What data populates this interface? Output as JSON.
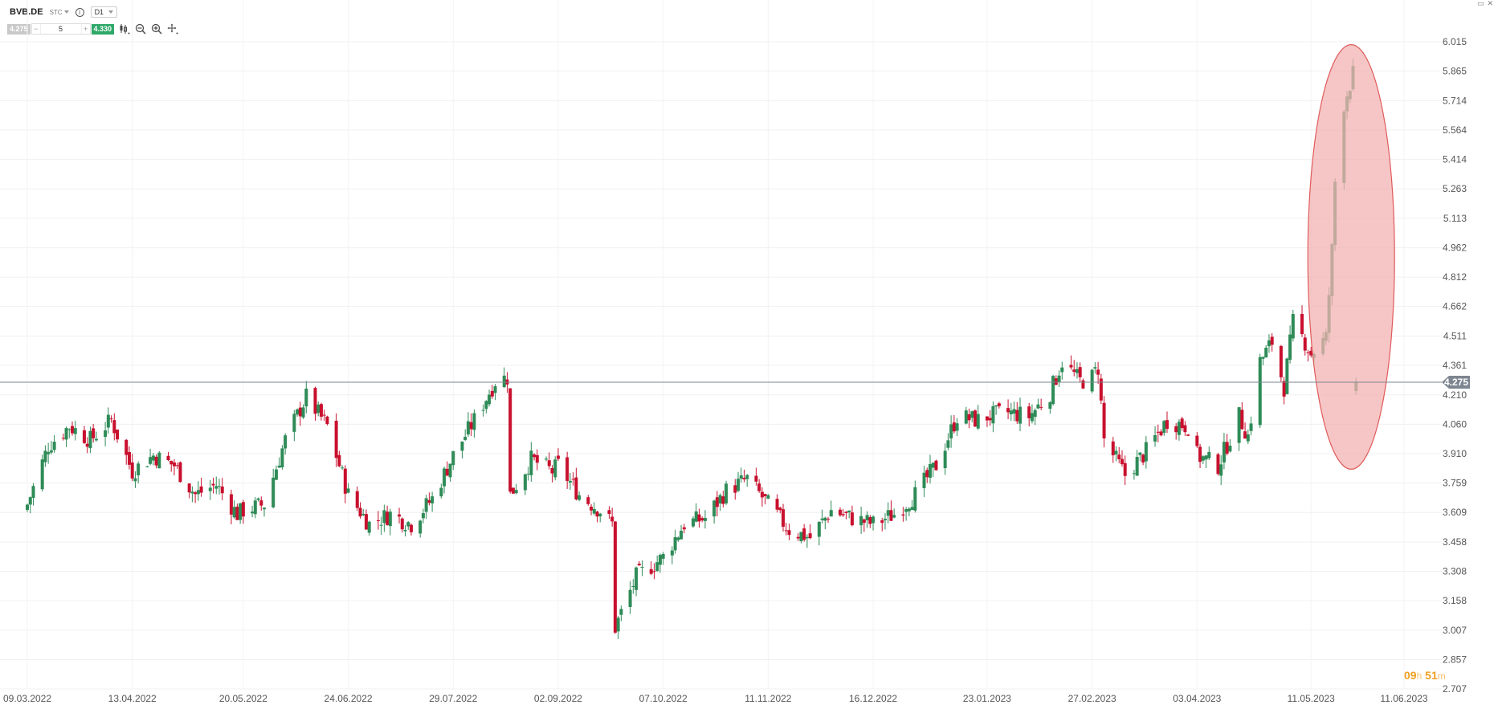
{
  "header": {
    "symbol": "BVB.DE",
    "instrument_type": "STC",
    "timeframe": "D1",
    "sell_price": "4.275",
    "quantity": "5",
    "buy_price": "4.330",
    "minus": "−",
    "plus": "+",
    "icons": [
      "info-icon",
      "candlestick-icon",
      "zoom-out-icon",
      "zoom-in-icon",
      "crosshair-icon"
    ]
  },
  "window_controls": [
    "minimize-icon",
    "close-icon"
  ],
  "timer": {
    "hours": "09",
    "h_unit": "h",
    "minutes": "51",
    "m_unit": "m"
  },
  "colors": {
    "up": "#2e8b57",
    "down": "#c8102e",
    "ellipse_fill": "#f3b3b3",
    "ellipse_stroke": "#e05a5a",
    "current_line": "#7d8590"
  },
  "chart_data": {
    "type": "candlestick",
    "ylim": [
      2.707,
      6.015
    ],
    "y_ticks": [
      "6.015",
      "5.865",
      "5.714",
      "5.564",
      "5.414",
      "5.263",
      "5.113",
      "4.962",
      "4.812",
      "4.662",
      "4.511",
      "4.361",
      "4.210",
      "4.060",
      "3.910",
      "3.759",
      "3.609",
      "3.458",
      "3.308",
      "3.158",
      "3.007",
      "2.857",
      "2.707"
    ],
    "x_ticks": [
      "09.03.2022",
      "13.04.2022",
      "20.05.2022",
      "24.06.2022",
      "29.07.2022",
      "02.09.2022",
      "07.10.2022",
      "11.11.2022",
      "16.12.2022",
      "23.01.2023",
      "27.02.2023",
      "03.04.2023",
      "11.05.2023",
      "11.06.2023"
    ],
    "current_price": "4.275",
    "highlight": "ellipse around May 2023 price spike",
    "close_path": [
      [
        "09.03.2022",
        3.65
      ],
      [
        "16.03.2022",
        3.95
      ],
      [
        "23.03.2022",
        4.05
      ],
      [
        "30.03.2022",
        3.98
      ],
      [
        "06.04.2022",
        4.08
      ],
      [
        "13.04.2022",
        3.82
      ],
      [
        "20.04.2022",
        3.9
      ],
      [
        "27.04.2022",
        3.85
      ],
      [
        "04.05.2022",
        3.7
      ],
      [
        "11.05.2022",
        3.75
      ],
      [
        "18.05.2022",
        3.6
      ],
      [
        "20.05.2022",
        3.62
      ],
      [
        "27.05.2022",
        3.65
      ],
      [
        "03.06.2022",
        3.98
      ],
      [
        "10.06.2022",
        4.2
      ],
      [
        "17.06.2022",
        4.05
      ],
      [
        "24.06.2022",
        3.7
      ],
      [
        "01.07.2022",
        3.55
      ],
      [
        "08.07.2022",
        3.6
      ],
      [
        "15.07.2022",
        3.55
      ],
      [
        "22.07.2022",
        3.68
      ],
      [
        "29.07.2022",
        3.9
      ],
      [
        "05.08.2022",
        4.08
      ],
      [
        "12.08.2022",
        4.28
      ],
      [
        "16.08.2022",
        4.3
      ],
      [
        "17.08.2022",
        3.7
      ],
      [
        "24.08.2022",
        3.88
      ],
      [
        "31.08.2022",
        3.82
      ],
      [
        "02.09.2022",
        3.85
      ],
      [
        "09.09.2022",
        3.7
      ],
      [
        "16.09.2022",
        3.62
      ],
      [
        "20.09.2022",
        3.55
      ],
      [
        "21.09.2022",
        3.02
      ],
      [
        "28.09.2022",
        3.28
      ],
      [
        "07.10.2022",
        3.38
      ],
      [
        "14.10.2022",
        3.55
      ],
      [
        "21.10.2022",
        3.58
      ],
      [
        "28.10.2022",
        3.72
      ],
      [
        "04.11.2022",
        3.78
      ],
      [
        "11.11.2022",
        3.65
      ],
      [
        "18.11.2022",
        3.52
      ],
      [
        "25.11.2022",
        3.48
      ],
      [
        "02.12.2022",
        3.62
      ],
      [
        "09.12.2022",
        3.58
      ],
      [
        "16.12.2022",
        3.55
      ],
      [
        "23.12.2022",
        3.6
      ],
      [
        "30.12.2022",
        3.7
      ],
      [
        "06.01.2023",
        3.85
      ],
      [
        "13.01.2023",
        4.1
      ],
      [
        "20.01.2023",
        4.08
      ],
      [
        "23.01.2023",
        4.1
      ],
      [
        "30.01.2023",
        4.12
      ],
      [
        "06.02.2023",
        4.1
      ],
      [
        "13.02.2023",
        4.22
      ],
      [
        "17.02.2023",
        4.38
      ],
      [
        "23.02.2023",
        4.28
      ],
      [
        "27.02.2023",
        4.3
      ],
      [
        "01.03.2023",
        4.35
      ],
      [
        "03.03.2023",
        3.98
      ],
      [
        "10.03.2023",
        3.8
      ],
      [
        "17.03.2023",
        3.92
      ],
      [
        "24.03.2023",
        4.08
      ],
      [
        "31.03.2023",
        4.05
      ],
      [
        "03.04.2023",
        3.9
      ],
      [
        "10.04.2023",
        3.85
      ],
      [
        "17.04.2023",
        4.1
      ],
      [
        "20.04.2023",
        4.0
      ],
      [
        "24.04.2023",
        4.38
      ],
      [
        "28.04.2023",
        4.48
      ],
      [
        "02.05.2023",
        4.25
      ],
      [
        "05.05.2023",
        4.58
      ],
      [
        "09.05.2023",
        4.48
      ],
      [
        "11.05.2023",
        4.42
      ],
      [
        "16.05.2023",
        4.5
      ],
      [
        "18.05.2023",
        4.95
      ],
      [
        "19.05.2023",
        5.3
      ],
      [
        "22.05.2023",
        5.7
      ],
      [
        "23.05.2023",
        5.75
      ],
      [
        "24.05.2023",
        5.8
      ],
      [
        "25.05.2023",
        5.85
      ],
      [
        "26.05.2023",
        4.3
      ]
    ]
  }
}
